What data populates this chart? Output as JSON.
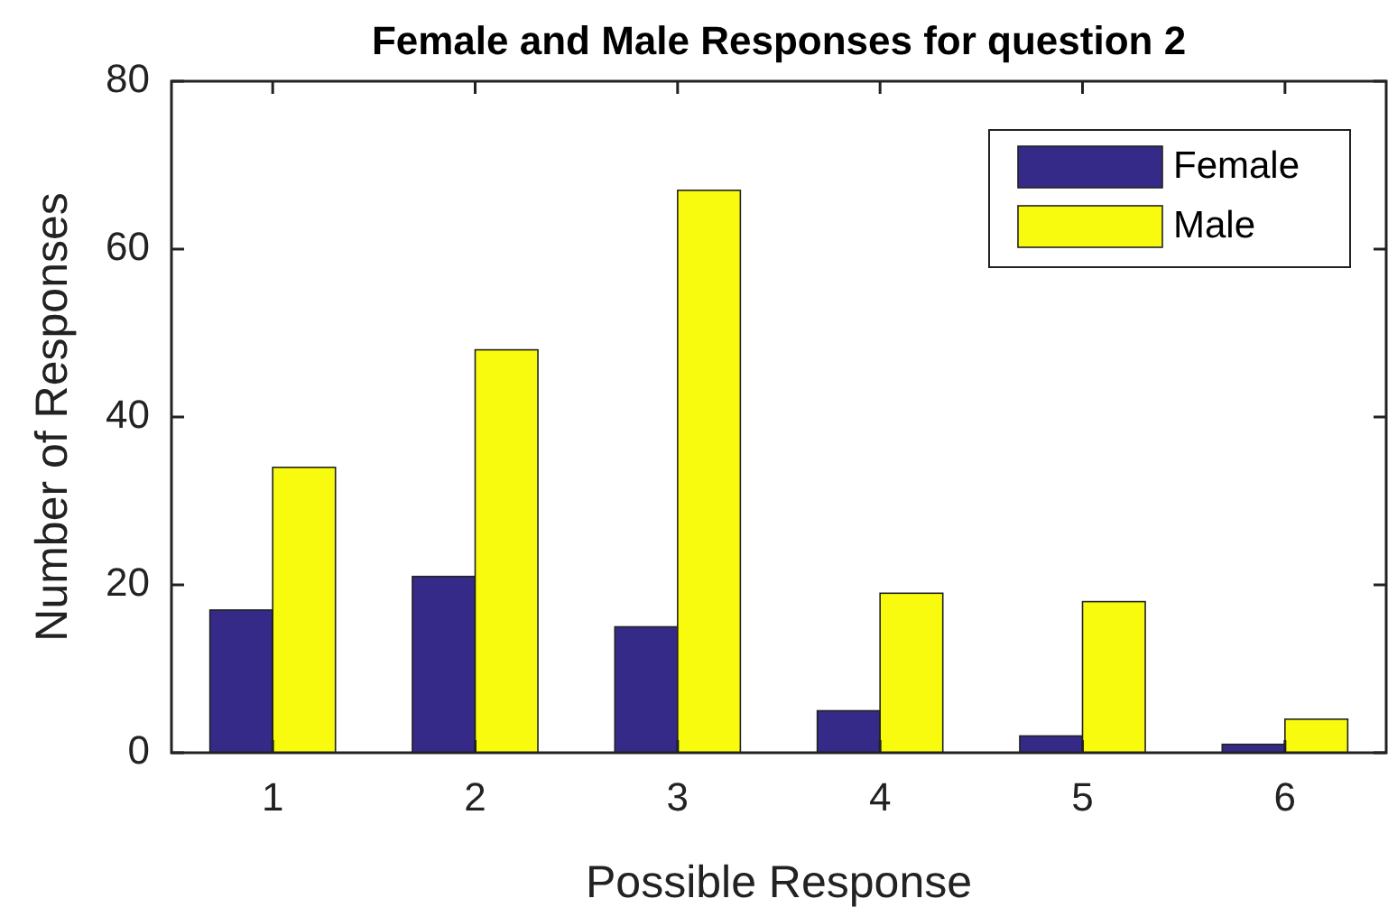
{
  "chart_data": {
    "type": "bar",
    "title": "Female and Male Responses for question 2",
    "xlabel": "Possible Response",
    "ylabel": "Number of Responses",
    "categories": [
      "1",
      "2",
      "3",
      "4",
      "5",
      "6"
    ],
    "series": [
      {
        "name": "Female",
        "color": "#352a87",
        "values": [
          17,
          21,
          15,
          5,
          2,
          1
        ]
      },
      {
        "name": "Male",
        "color": "#f9fb0e",
        "values": [
          34,
          48,
          67,
          19,
          18,
          4
        ]
      }
    ],
    "ylim": [
      0,
      80
    ],
    "yticks": [
      0,
      20,
      40,
      60,
      80
    ],
    "grid": false,
    "legend": "top right"
  }
}
